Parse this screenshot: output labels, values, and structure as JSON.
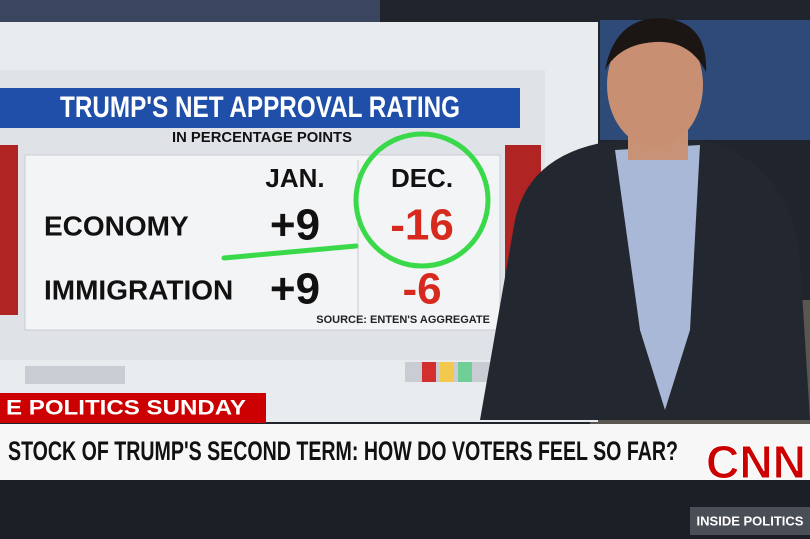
{
  "screen": {
    "title": "TRUMP'S NET APPROVAL RATING",
    "subtitle": "IN PERCENTAGE POINTS",
    "table": {
      "columns": [
        "JAN.",
        "DEC."
      ],
      "rows": [
        {
          "label": "ECONOMY",
          "values": [
            "+9",
            "-16"
          ]
        },
        {
          "label": "IMMIGRATION",
          "values": [
            "+9",
            "-6"
          ]
        }
      ]
    },
    "source": "SOURCE: ENTEN'S AGGREGATE"
  },
  "lower_third": {
    "show": "E POLITICS SUNDAY",
    "headline": "STOCK OF TRUMP'S SECOND TERM: HOW DO VOTERS FEEL SO FAR?"
  },
  "logo": "CNN",
  "bug": "INSIDE POLITICS"
}
